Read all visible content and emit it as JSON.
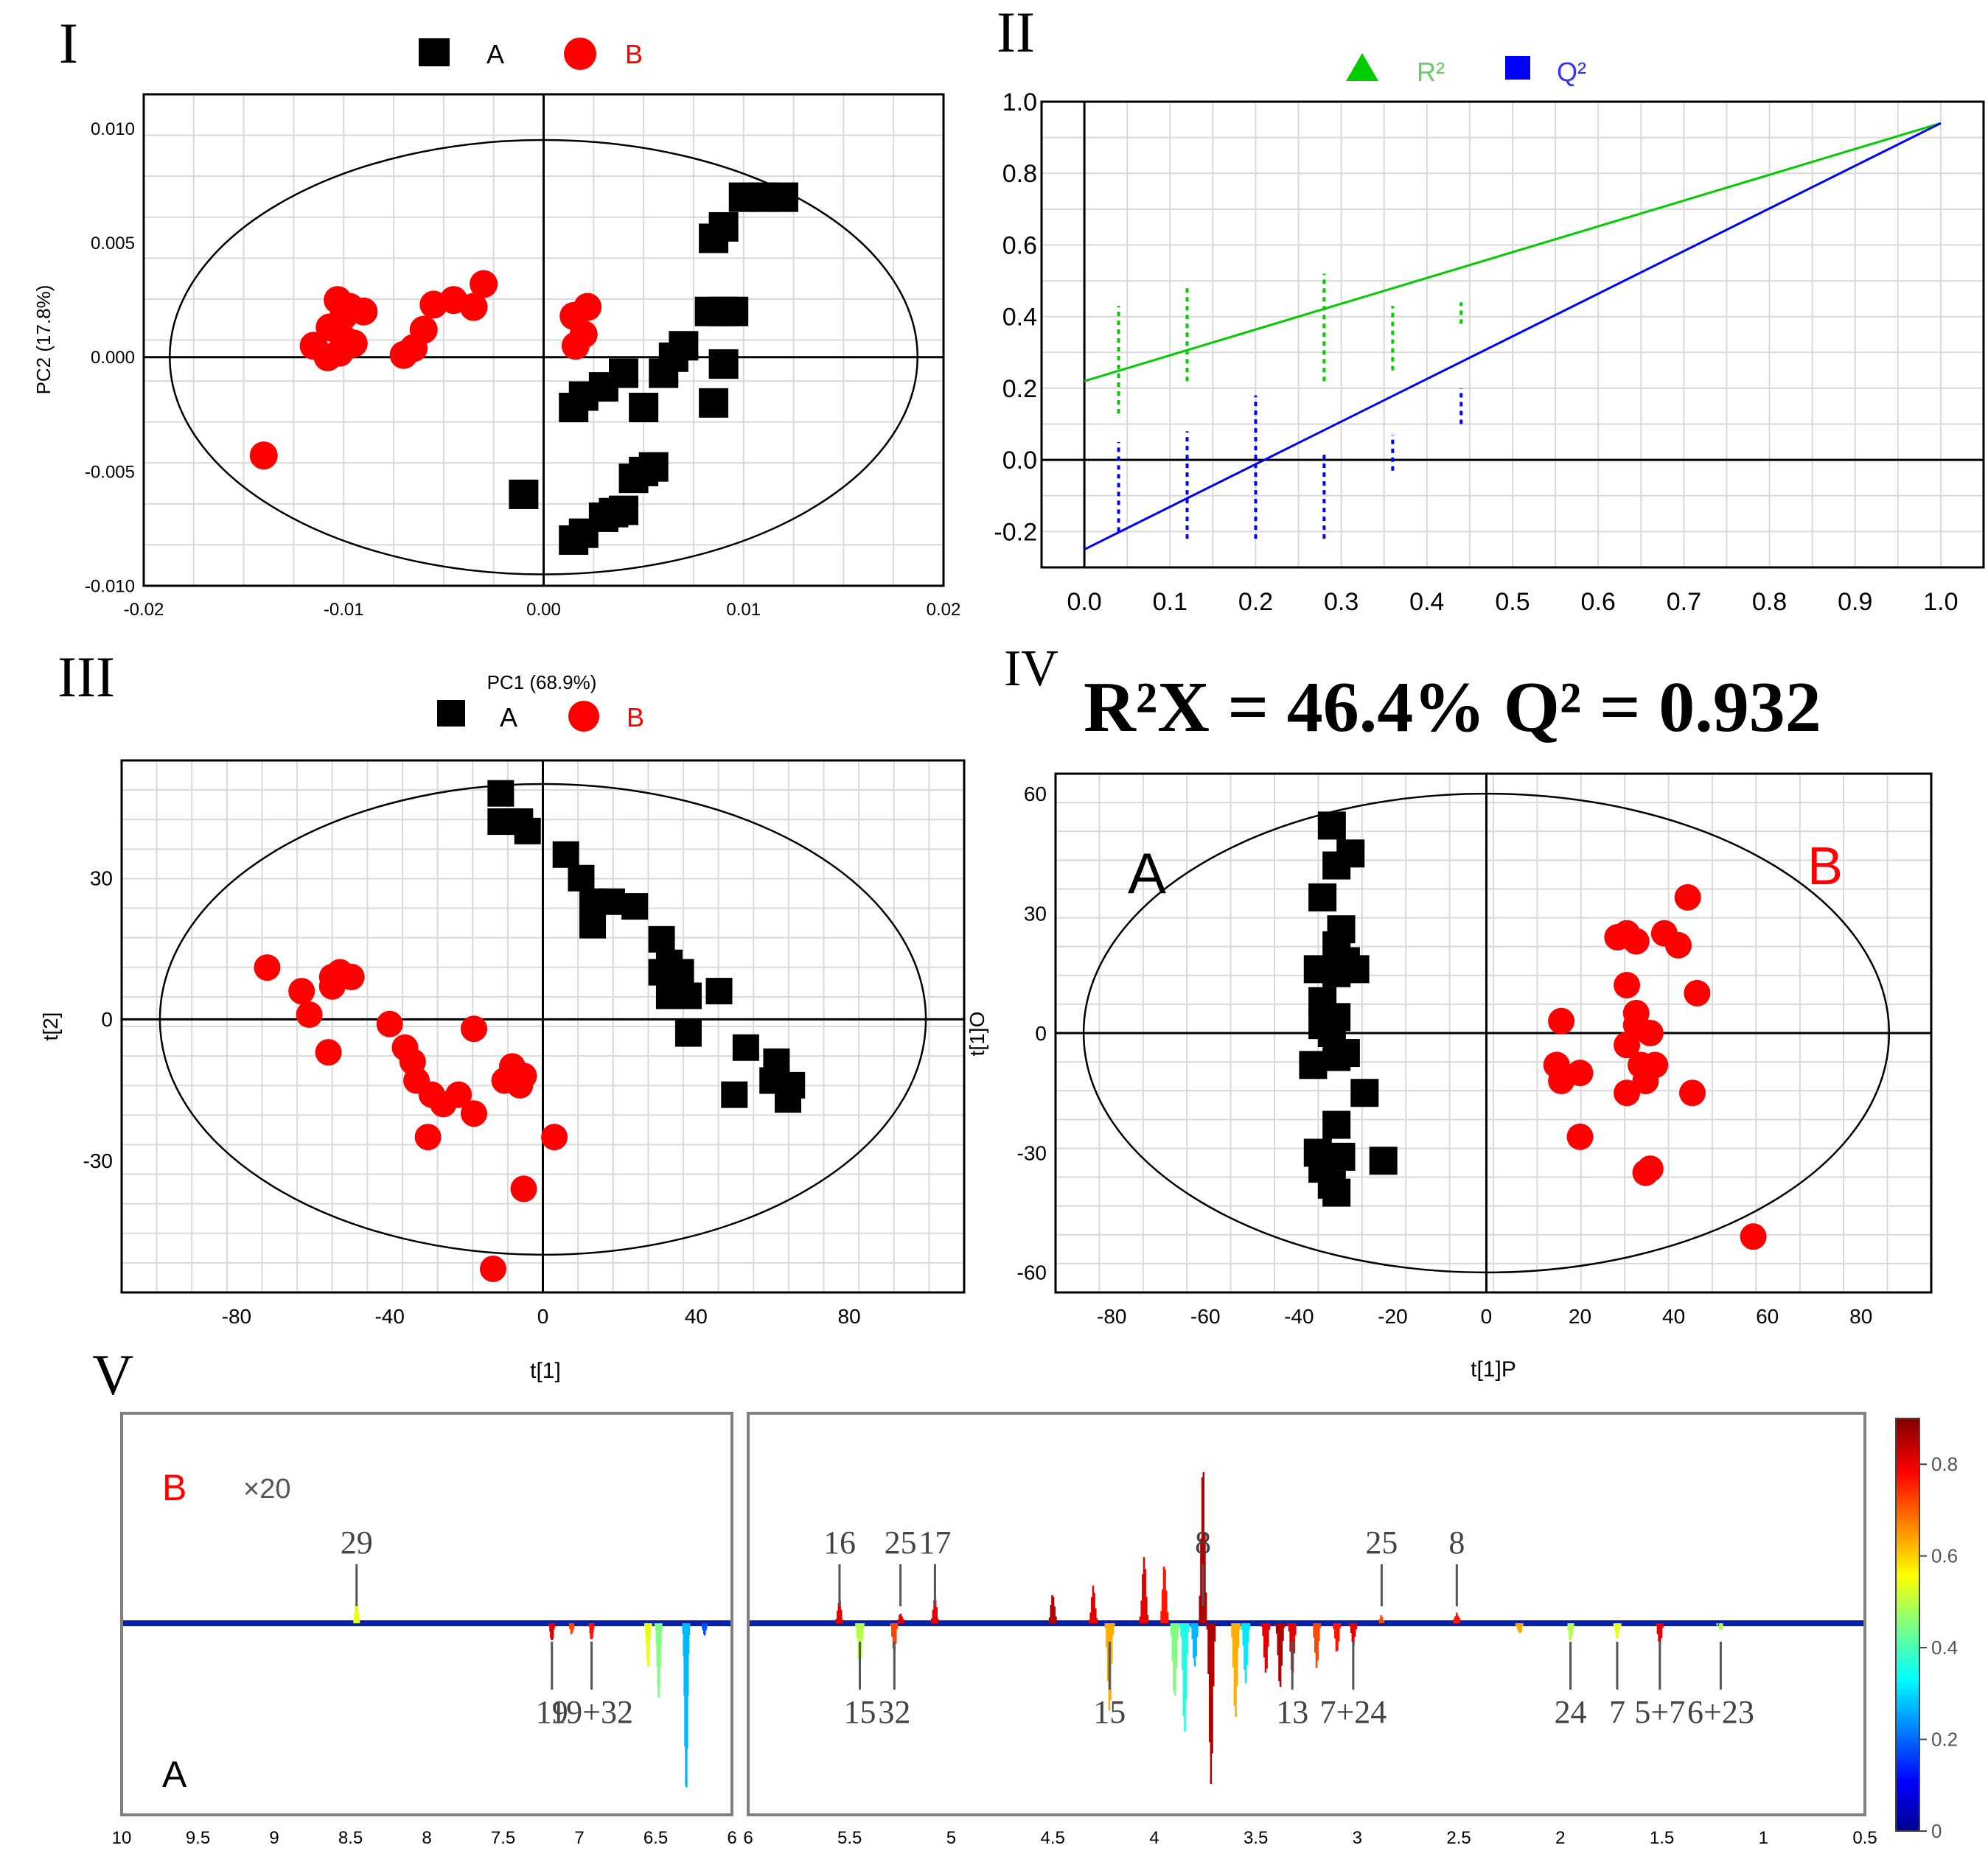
{
  "colors": {
    "groupA": "#000000",
    "groupB": "#ff0000",
    "r2": "#00cc00",
    "q2": "#0000ff",
    "frame": "#000000",
    "grid": "#d9d9d9",
    "legendR2Text": "#66cc66",
    "legendQ2Text": "#3333ff"
  },
  "chart_data": [
    {
      "type": "scatter",
      "panel_label": "I",
      "title": "",
      "xlabel": "PC1 (68.9%)",
      "ylabel": "PC2 (17.8%)",
      "xlim": [
        -0.02,
        0.02
      ],
      "ylim": [
        -0.01,
        0.0115
      ],
      "x_ticks": [
        "-0.02",
        "-0.01",
        "0.00",
        "0.01",
        "0.02"
      ],
      "y_ticks": [
        "0.010",
        "0.005",
        "0.000",
        "-0.005",
        "-0.010"
      ],
      "legend": [
        {
          "name": "A",
          "marker": "square"
        },
        {
          "name": "B",
          "marker": "circle"
        }
      ],
      "ellipse": {
        "rx": 0.0187,
        "ry": 0.0095
      },
      "series": [
        {
          "name": "A",
          "points": [
            [
              0.01,
              0.007
            ],
            [
              0.011,
              0.007
            ],
            [
              0.012,
              0.007
            ],
            [
              0.009,
              0.0057
            ],
            [
              0.0085,
              0.0052
            ],
            [
              0.0083,
              0.002
            ],
            [
              0.009,
              0.002
            ],
            [
              0.0095,
              0.002
            ],
            [
              0.007,
              0.0005
            ],
            [
              0.0065,
              0.0
            ],
            [
              0.009,
              -0.0003
            ],
            [
              0.006,
              -0.0007
            ],
            [
              0.004,
              -0.0007
            ],
            [
              0.003,
              -0.0013
            ],
            [
              0.002,
              -0.0017
            ],
            [
              0.0015,
              -0.0022
            ],
            [
              0.005,
              -0.0022
            ],
            [
              0.0085,
              -0.002
            ],
            [
              0.0055,
              -0.0048
            ],
            [
              0.005,
              -0.005
            ],
            [
              0.0045,
              -0.0053
            ],
            [
              0.004,
              -0.0067
            ],
            [
              0.0035,
              -0.0068
            ],
            [
              0.003,
              -0.007
            ],
            [
              0.002,
              -0.0077
            ],
            [
              0.0015,
              -0.008
            ],
            [
              -0.001,
              -0.006
            ]
          ]
        },
        {
          "name": "B",
          "points": [
            [
              -0.0103,
              0.0025
            ],
            [
              -0.0097,
              0.0022
            ],
            [
              -0.009,
              0.002
            ],
            [
              -0.01,
              0.0018
            ],
            [
              -0.0107,
              0.0013
            ],
            [
              -0.01,
              0.0008
            ],
            [
              -0.0095,
              0.0006
            ],
            [
              -0.0115,
              0.0005
            ],
            [
              -0.0102,
              0.0002
            ],
            [
              -0.0108,
              0.0
            ],
            [
              -0.003,
              0.0032
            ],
            [
              -0.0045,
              0.0025
            ],
            [
              -0.0055,
              0.0023
            ],
            [
              -0.0035,
              0.0022
            ],
            [
              -0.006,
              0.0012
            ],
            [
              -0.0065,
              0.0004
            ],
            [
              -0.007,
              0.0001
            ],
            [
              0.0022,
              0.0022
            ],
            [
              0.0015,
              0.0018
            ],
            [
              0.002,
              0.001
            ],
            [
              0.0016,
              0.0005
            ],
            [
              -0.014,
              -0.0043
            ]
          ]
        }
      ]
    },
    {
      "type": "line",
      "panel_label": "II",
      "title": "",
      "xlabel": "",
      "ylabel": "",
      "xlim": [
        -0.05,
        1.05
      ],
      "ylim": [
        -0.3,
        1.0
      ],
      "x_ticks": [
        "0.0",
        "0.1",
        "0.2",
        "0.3",
        "0.4",
        "0.5",
        "0.6",
        "0.7",
        "0.8",
        "0.9",
        "1.0"
      ],
      "y_ticks": [
        "1.0",
        "0.8",
        "0.6",
        "0.4",
        "0.2",
        "0.0",
        "-0.2"
      ],
      "legend": [
        {
          "name": "R²",
          "marker": "triangle"
        },
        {
          "name": "Q²",
          "marker": "square"
        }
      ],
      "lines": [
        {
          "name": "R²",
          "x": [
            0.0,
            1.0
          ],
          "y": [
            0.22,
            0.94
          ]
        },
        {
          "name": "Q²",
          "x": [
            0.0,
            1.0
          ],
          "y": [
            -0.25,
            0.94
          ]
        }
      ],
      "permutation_ranges": [
        {
          "name": "R²",
          "x": 0.04,
          "y_range": [
            0.13,
            0.43
          ]
        },
        {
          "name": "R²",
          "x": 0.12,
          "y_range": [
            0.22,
            0.49
          ]
        },
        {
          "name": "R²",
          "x": 0.28,
          "y_range": [
            0.22,
            0.52
          ]
        },
        {
          "name": "R²",
          "x": 0.36,
          "y_range": [
            0.25,
            0.43
          ]
        },
        {
          "name": "R²",
          "x": 0.44,
          "y_range": [
            0.38,
            0.44
          ]
        },
        {
          "name": "Q²",
          "x": 0.04,
          "y_range": [
            -0.2,
            0.05
          ]
        },
        {
          "name": "Q²",
          "x": 0.12,
          "y_range": [
            -0.22,
            0.08
          ]
        },
        {
          "name": "Q²",
          "x": 0.2,
          "y_range": [
            -0.22,
            0.18
          ]
        },
        {
          "name": "Q²",
          "x": 0.28,
          "y_range": [
            -0.22,
            0.02
          ]
        },
        {
          "name": "Q²",
          "x": 0.36,
          "y_range": [
            -0.03,
            0.07
          ]
        },
        {
          "name": "Q²",
          "x": 0.44,
          "y_range": [
            0.1,
            0.2
          ]
        }
      ]
    },
    {
      "type": "scatter",
      "panel_label": "III",
      "title": "",
      "xlabel": "t[1]",
      "ylabel": "t[2]",
      "xlim": [
        -110,
        110
      ],
      "ylim": [
        -58,
        55
      ],
      "x_ticks": [
        "-80",
        "-40",
        "0",
        "40",
        "80"
      ],
      "y_ticks": [
        "30",
        "0",
        "-30"
      ],
      "legend": [
        {
          "name": "A",
          "marker": "square"
        },
        {
          "name": "B",
          "marker": "circle"
        }
      ],
      "ellipse": {
        "rx": 100,
        "ry": 50
      },
      "series": [
        {
          "name": "A",
          "points": [
            [
              -11,
              48
            ],
            [
              -11,
              42
            ],
            [
              -6,
              42
            ],
            [
              -4,
              40
            ],
            [
              6,
              35
            ],
            [
              10,
              30
            ],
            [
              13,
              25
            ],
            [
              13,
              20
            ],
            [
              18,
              25
            ],
            [
              24,
              24
            ],
            [
              31,
              17
            ],
            [
              33,
              12
            ],
            [
              31,
              10
            ],
            [
              36,
              10
            ],
            [
              38,
              5
            ],
            [
              46,
              6
            ],
            [
              33,
              5
            ],
            [
              38,
              -3
            ],
            [
              53,
              -6
            ],
            [
              50,
              -16
            ],
            [
              61,
              -9
            ],
            [
              65,
              -14
            ],
            [
              64,
              -17
            ],
            [
              60,
              -13
            ]
          ]
        },
        {
          "name": "B",
          "points": [
            [
              -72,
              11
            ],
            [
              -63,
              6
            ],
            [
              -61,
              1
            ],
            [
              -55,
              9
            ],
            [
              -55,
              7
            ],
            [
              -53,
              10
            ],
            [
              -50,
              9
            ],
            [
              -56,
              -7
            ],
            [
              -40,
              -1
            ],
            [
              -36,
              -6
            ],
            [
              -34,
              -9
            ],
            [
              -33,
              -13
            ],
            [
              -29,
              -16
            ],
            [
              -26,
              -18
            ],
            [
              -22,
              -16
            ],
            [
              -18,
              -2
            ],
            [
              -18,
              -20
            ],
            [
              -30,
              -25
            ],
            [
              -8,
              -10
            ],
            [
              -10,
              -13
            ],
            [
              -5,
              -12
            ],
            [
              -6,
              -14
            ],
            [
              3,
              -25
            ],
            [
              -5,
              -36
            ],
            [
              -13,
              -53
            ]
          ]
        }
      ]
    },
    {
      "type": "scatter",
      "panel_label": "IV",
      "title": "R²X = 46.4% Q² = 0.932",
      "xlabel": "t[1]P",
      "ylabel": "t[1]O",
      "xlim": [
        -92,
        95
      ],
      "ylim": [
        -65,
        65
      ],
      "x_ticks": [
        "-80",
        "-60",
        "-40",
        "-20",
        "0",
        "20",
        "40",
        "60",
        "80"
      ],
      "y_ticks": [
        "60",
        "30",
        "0",
        "-30",
        "-60"
      ],
      "annotations": [
        "A",
        "B"
      ],
      "ellipse": {
        "rx": 86,
        "ry": 60
      },
      "series": [
        {
          "name": "A",
          "points": [
            [
              -33,
              52
            ],
            [
              -32,
              42
            ],
            [
              -29,
              45
            ],
            [
              -35,
              34
            ],
            [
              -31,
              26
            ],
            [
              -32,
              22
            ],
            [
              -30,
              18
            ],
            [
              -36,
              16
            ],
            [
              -32,
              15
            ],
            [
              -28,
              16
            ],
            [
              -35,
              8
            ],
            [
              -35,
              2
            ],
            [
              -32,
              4
            ],
            [
              -33,
              0
            ],
            [
              -30,
              -5
            ],
            [
              -37,
              -8
            ],
            [
              -32,
              -6
            ],
            [
              -26,
              -15
            ],
            [
              -32,
              -23
            ],
            [
              -36,
              -30
            ],
            [
              -35,
              -34
            ],
            [
              -31,
              -31
            ],
            [
              -33,
              -38
            ],
            [
              -32,
              -40
            ],
            [
              -22,
              -32
            ]
          ]
        },
        {
          "name": "B",
          "points": [
            [
              16,
              3
            ],
            [
              15,
              -8
            ],
            [
              16,
              -12
            ],
            [
              20,
              -10
            ],
            [
              20,
              -26
            ],
            [
              28,
              24
            ],
            [
              30,
              25
            ],
            [
              32,
              23
            ],
            [
              30,
              12
            ],
            [
              32,
              5
            ],
            [
              32,
              2
            ],
            [
              35,
              0
            ],
            [
              30,
              -3
            ],
            [
              33,
              -8
            ],
            [
              36,
              -8
            ],
            [
              34,
              -12
            ],
            [
              30,
              -15
            ],
            [
              35,
              -34
            ],
            [
              34,
              -35
            ],
            [
              38,
              25
            ],
            [
              41,
              22
            ],
            [
              43,
              34
            ],
            [
              45,
              10
            ],
            [
              44,
              -15
            ],
            [
              57,
              -51
            ]
          ]
        }
      ]
    },
    {
      "type": "line",
      "panel_label": "V",
      "title": "",
      "xlabel": "",
      "ylabel": "",
      "xlim": [
        10,
        0.5
      ],
      "x_ticks_left": [
        "10",
        "9.5",
        "9",
        "8.5",
        "8",
        "7.5",
        "7",
        "6.5",
        "6"
      ],
      "x_ticks_right": [
        "6",
        "5.5",
        "5",
        "4.5",
        "4",
        "3.5",
        "3",
        "2.5",
        "2",
        "1.5",
        "1",
        "0.5"
      ],
      "sign_labels": {
        "top": "B",
        "bottom": "A"
      },
      "scale_note": "×20",
      "colorbar": {
        "min": 0,
        "max": 0.9,
        "ticks": [
          "0.8",
          "0.6",
          "0.4",
          "0.2",
          "0"
        ]
      },
      "annotations_top": [
        {
          "label": "29",
          "ppm": 8.46
        },
        {
          "label": "16",
          "ppm": 5.55
        },
        {
          "label": "25",
          "ppm": 5.25
        },
        {
          "label": "17",
          "ppm": 5.08
        },
        {
          "label": "8",
          "ppm": 3.76
        },
        {
          "label": "25",
          "ppm": 2.88
        },
        {
          "label": "8",
          "ppm": 2.51
        }
      ],
      "annotations_bottom": [
        {
          "label": "19",
          "ppm": 7.18
        },
        {
          "label": "19+32",
          "ppm": 6.92
        },
        {
          "label": "32",
          "ppm": 5.28
        },
        {
          "label": "15",
          "ppm": 5.45
        },
        {
          "label": "15",
          "ppm": 4.22
        },
        {
          "label": "13",
          "ppm": 3.32
        },
        {
          "label": "7+24",
          "ppm": 3.02
        },
        {
          "label": "24",
          "ppm": 1.95
        },
        {
          "label": "7",
          "ppm": 1.72
        },
        {
          "label": "5+7",
          "ppm": 1.51
        },
        {
          "label": "6+23",
          "ppm": 1.21
        }
      ]
    }
  ]
}
